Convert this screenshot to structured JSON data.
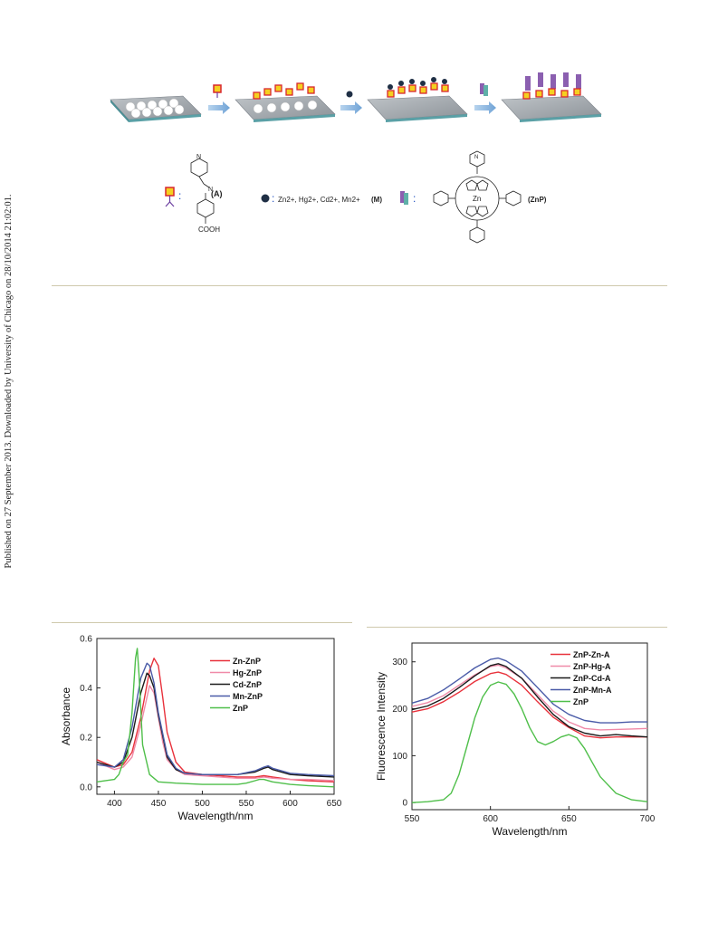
{
  "sidebar": {
    "text": "Published on 27 September 2013. Downloaded by University of Chicago on 28/10/2014 21:02:01."
  },
  "scheme": {
    "legend_A_label": "(A)",
    "legend_A_group": "COOH",
    "legend_A_atom": "N",
    "legend_M_ions": "Zn2+, Hg2+, Cd2+, Mn2+",
    "legend_M_label": "(M)",
    "legend_ZnP_label": "(ZnP)",
    "legend_ZnP_center": "Zn",
    "legend_ZnP_atom": "N",
    "colon": ":"
  },
  "chart_data": [
    {
      "type": "line",
      "xlabel": "Wavelength/nm",
      "ylabel": "Absorbance",
      "xlim": [
        380,
        650
      ],
      "ylim": [
        -0.03,
        0.6
      ],
      "xticks": [
        400,
        450,
        500,
        550,
        600,
        650
      ],
      "yticks": [
        0.0,
        0.2,
        0.4,
        0.6
      ],
      "legend_position": "top-right",
      "series": [
        {
          "name": "Zn-ZnP",
          "color": "#e8323c",
          "x": [
            380,
            400,
            410,
            420,
            430,
            440,
            445,
            450,
            455,
            460,
            470,
            480,
            500,
            520,
            540,
            560,
            570,
            580,
            600,
            620,
            650
          ],
          "y": [
            0.11,
            0.08,
            0.09,
            0.14,
            0.28,
            0.47,
            0.52,
            0.49,
            0.36,
            0.22,
            0.1,
            0.06,
            0.05,
            0.045,
            0.04,
            0.04,
            0.045,
            0.04,
            0.03,
            0.025,
            0.02
          ]
        },
        {
          "name": "Hg-ZnP",
          "color": "#f08aa8",
          "x": [
            380,
            400,
            410,
            420,
            430,
            440,
            445,
            450,
            455,
            460,
            470,
            480,
            500,
            520,
            540,
            560,
            570,
            580,
            600,
            620,
            650
          ],
          "y": [
            0.1,
            0.07,
            0.08,
            0.12,
            0.25,
            0.41,
            0.38,
            0.28,
            0.18,
            0.11,
            0.07,
            0.05,
            0.045,
            0.04,
            0.035,
            0.035,
            0.04,
            0.035,
            0.03,
            0.03,
            0.025
          ]
        },
        {
          "name": "Cd-ZnP",
          "color": "#1a1a1a",
          "x": [
            380,
            400,
            410,
            420,
            430,
            437,
            440,
            445,
            450,
            460,
            470,
            480,
            500,
            520,
            540,
            560,
            570,
            575,
            580,
            600,
            620,
            650
          ],
          "y": [
            0.1,
            0.08,
            0.1,
            0.2,
            0.38,
            0.46,
            0.45,
            0.4,
            0.29,
            0.12,
            0.07,
            0.055,
            0.05,
            0.05,
            0.05,
            0.06,
            0.075,
            0.08,
            0.07,
            0.05,
            0.045,
            0.04
          ]
        },
        {
          "name": "Mn-ZnP",
          "color": "#4a5ba8",
          "x": [
            380,
            400,
            410,
            420,
            430,
            437,
            440,
            445,
            450,
            460,
            470,
            480,
            500,
            520,
            540,
            560,
            570,
            575,
            580,
            600,
            620,
            650
          ],
          "y": [
            0.09,
            0.08,
            0.11,
            0.24,
            0.44,
            0.5,
            0.49,
            0.42,
            0.3,
            0.13,
            0.075,
            0.055,
            0.05,
            0.05,
            0.05,
            0.065,
            0.08,
            0.085,
            0.075,
            0.055,
            0.05,
            0.045
          ]
        },
        {
          "name": "ZnP",
          "color": "#4fbf4a",
          "x": [
            380,
            400,
            405,
            410,
            415,
            420,
            424,
            426,
            428,
            432,
            440,
            450,
            470,
            500,
            520,
            540,
            550,
            560,
            565,
            570,
            580,
            600,
            620,
            650
          ],
          "y": [
            0.02,
            0.03,
            0.05,
            0.1,
            0.13,
            0.3,
            0.52,
            0.56,
            0.45,
            0.17,
            0.05,
            0.02,
            0.015,
            0.01,
            0.01,
            0.01,
            0.015,
            0.025,
            0.03,
            0.03,
            0.02,
            0.01,
            0.005,
            0.0
          ]
        }
      ]
    },
    {
      "type": "line",
      "xlabel": "Wavelength/nm",
      "ylabel": "Fluorescence Intensity",
      "xlim": [
        550,
        700
      ],
      "ylim": [
        -15,
        340
      ],
      "xticks": [
        550,
        600,
        650,
        700
      ],
      "yticks": [
        0,
        100,
        200,
        300
      ],
      "legend_position": "top-right",
      "series": [
        {
          "name": "ZnP-Zn-A",
          "color": "#e8323c",
          "x": [
            550,
            560,
            570,
            580,
            590,
            600,
            605,
            610,
            620,
            630,
            640,
            650,
            660,
            670,
            680,
            690,
            700
          ],
          "y": [
            193,
            200,
            215,
            235,
            258,
            275,
            278,
            273,
            250,
            215,
            182,
            160,
            142,
            138,
            140,
            140,
            140
          ]
        },
        {
          "name": "ZnP-Hg-A",
          "color": "#f08aa8",
          "x": [
            550,
            560,
            570,
            580,
            590,
            600,
            605,
            610,
            620,
            630,
            640,
            650,
            660,
            670,
            680,
            690,
            700
          ],
          "y": [
            205,
            213,
            228,
            250,
            272,
            290,
            293,
            287,
            265,
            230,
            195,
            172,
            158,
            155,
            156,
            157,
            158
          ]
        },
        {
          "name": "ZnP-Cd-A",
          "color": "#1a1a1a",
          "x": [
            550,
            560,
            570,
            580,
            590,
            600,
            605,
            610,
            620,
            630,
            640,
            650,
            660,
            670,
            680,
            690,
            700
          ],
          "y": [
            198,
            206,
            222,
            245,
            270,
            292,
            296,
            290,
            265,
            225,
            188,
            162,
            148,
            142,
            145,
            142,
            140
          ]
        },
        {
          "name": "ZnP-Mn-A",
          "color": "#4a5ba8",
          "x": [
            550,
            560,
            570,
            580,
            590,
            600,
            605,
            610,
            620,
            630,
            640,
            650,
            660,
            670,
            680,
            690,
            700
          ],
          "y": [
            212,
            222,
            240,
            263,
            287,
            305,
            308,
            302,
            280,
            245,
            210,
            188,
            175,
            170,
            170,
            172,
            172
          ]
        },
        {
          "name": "ZnP",
          "color": "#4fbf4a",
          "x": [
            550,
            560,
            570,
            575,
            580,
            585,
            590,
            595,
            600,
            605,
            610,
            615,
            620,
            625,
            630,
            635,
            640,
            645,
            650,
            655,
            660,
            665,
            670,
            680,
            690,
            700
          ],
          "y": [
            0,
            2,
            6,
            20,
            60,
            120,
            180,
            225,
            250,
            257,
            252,
            232,
            200,
            160,
            130,
            123,
            130,
            140,
            145,
            138,
            115,
            85,
            55,
            20,
            6,
            2
          ]
        }
      ]
    }
  ]
}
